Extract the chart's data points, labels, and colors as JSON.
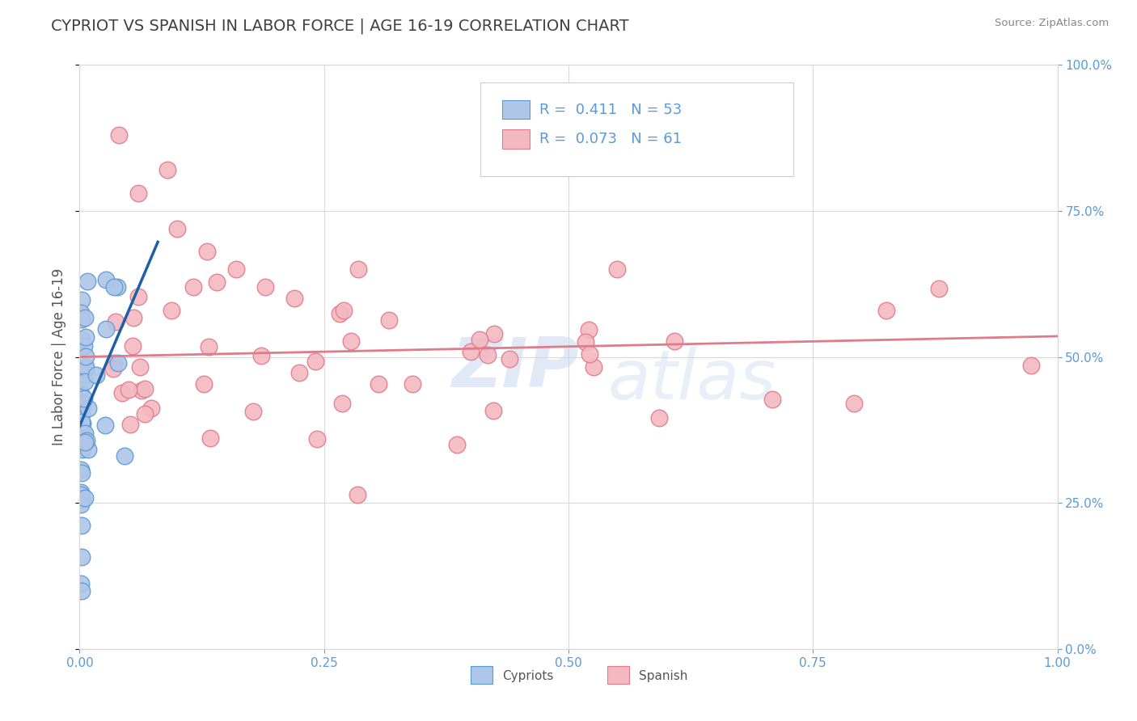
{
  "title": "CYPRIOT VS SPANISH IN LABOR FORCE | AGE 16-19 CORRELATION CHART",
  "source": "Source: ZipAtlas.com",
  "ylabel": "In Labor Force | Age 16-19",
  "xlim": [
    0.0,
    1.0
  ],
  "ylim": [
    0.0,
    1.0
  ],
  "xticks": [
    0.0,
    0.25,
    0.5,
    0.75,
    1.0
  ],
  "yticks": [
    0.0,
    0.25,
    0.5,
    0.75,
    1.0
  ],
  "xticklabels": [
    "0.0%",
    "25.0%",
    "50.0%",
    "75.0%",
    "100.0%"
  ],
  "yticklabels": [
    "0.0%",
    "25.0%",
    "50.0%",
    "75.0%",
    "100.0%"
  ],
  "cypriot_color": "#aec6e8",
  "cypriot_edge_color": "#5b9bd5",
  "spanish_color": "#f4b8c1",
  "spanish_edge_color": "#e07b8a",
  "cypriot_R": 0.411,
  "cypriot_N": 53,
  "spanish_R": 0.073,
  "spanish_N": 61,
  "legend_label_cypriot": "Cypriots",
  "legend_label_spanish": "Spanish",
  "watermark_zip": "ZIP",
  "watermark_atlas": "atlas",
  "background_color": "#ffffff",
  "grid_color": "#d9d9d9",
  "title_color": "#404040",
  "axis_tick_color": "#5b9bd5",
  "cypriot_line_color": "#1f5fa6",
  "cypriot_dash_color": "#7eb3e0",
  "spanish_line_color": "#e07b8a",
  "legend_box_color": "#cccccc",
  "legend_text_color": "#5b9bd5",
  "source_color": "#888888"
}
